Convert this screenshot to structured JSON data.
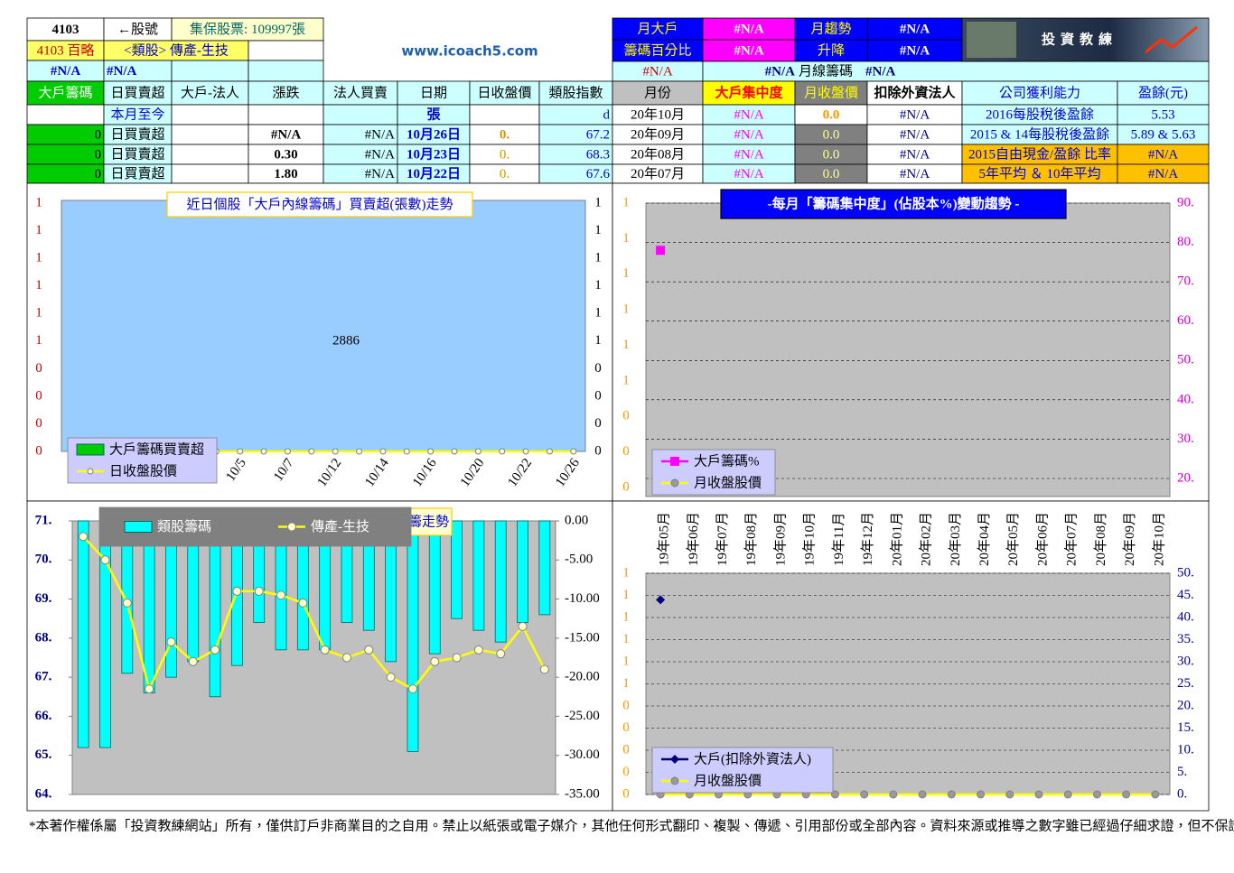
{
  "header": {
    "stock_code": "4103",
    "code_label": "←股號",
    "shares": "集保股票: 109997張",
    "stock_name": "4103 百略",
    "sector": "<類股> 傳產-生技",
    "na_1": "#N/A",
    "na_2": "#N/A",
    "site": "www.icoach5.com",
    "big_holder_label_1": "月大戶",
    "big_holder_label_2": "籌碼百分比",
    "big_holder_value_1": "#N/A",
    "big_holder_value_2": "#N/A",
    "big_holder_value_3": "#N/A",
    "trend_label_1": "月趨勢",
    "trend_label_2": "升降",
    "trend_value_1": "#N/A",
    "trend_value_2": "#N/A",
    "monthly_line": [
      "#N/A",
      "月線籌碼",
      "#N/A"
    ],
    "logo": "投資教練"
  },
  "table": {
    "rows": [
      [
        "大戶籌碼",
        "日買賣超",
        "大戶-法人",
        "漲跌",
        "法人買賣",
        "日期",
        "日收盤價",
        "類股指數",
        "月份",
        "大戶集中度",
        "月收盤價",
        "扣除外資法人",
        "公司獲利能力",
        "盈餘(元)"
      ],
      [
        null,
        "本月至今",
        null,
        null,
        null,
        "張",
        null,
        "d",
        "20年10月",
        "#N/A",
        "0.0",
        "#N/A",
        "2016每股稅後盈餘",
        "5.53"
      ],
      [
        "0",
        "日買賣超",
        null,
        "#N/A",
        "#N/A",
        "10月26日",
        "0.",
        "67.2",
        "20年09月",
        "#N/A",
        "0.0",
        "#N/A",
        "2015 & 14每股稅後盈餘",
        "5.89 & 5.63"
      ],
      [
        "0",
        "日買賣超",
        null,
        "0.30",
        "#N/A",
        "10月23日",
        "0.",
        "68.3",
        "20年08月",
        "#N/A",
        "0.0",
        "#N/A",
        "2015自由現金/盈餘 比率",
        "#N/A"
      ],
      [
        "0",
        "日買賣超",
        null,
        "1.80",
        "#N/A",
        "10月22日",
        "0.",
        "67.6",
        "20年07月",
        "#N/A",
        "0.0",
        "#N/A",
        "5年平均 ＆ 10年平均",
        "#N/A"
      ]
    ]
  },
  "chart_data": [
    {
      "type": "bar",
      "title": "近日個股「大戶內線籌碼」買賣超(張數)走勢",
      "annotation": "2886",
      "categories": [
        null,
        null,
        null,
        null,
        null,
        null,
        null,
        "10/5",
        null,
        "10/7",
        null,
        "10/12",
        null,
        "10/14",
        null,
        "10/16",
        null,
        "10/20",
        null,
        "10/22",
        null,
        "10/26"
      ],
      "left_axis_labels": [
        "1",
        "1",
        "1",
        "1",
        "1",
        "1",
        "0",
        "0",
        "0",
        "0"
      ],
      "right_axis_labels": [
        "1",
        "1",
        "1",
        "1",
        "1",
        "1",
        "0",
        "0",
        "0",
        "0"
      ],
      "series": [
        {
          "name": "大戶籌碼買賣超",
          "color": "#00cc00"
        },
        {
          "name": "日收盤股價",
          "color": "#ffff00",
          "values": [
            0,
            0,
            0,
            0,
            0,
            0,
            0,
            0,
            0,
            0,
            0,
            0,
            0,
            0,
            0,
            0,
            0,
            0,
            0,
            0,
            0,
            0
          ]
        }
      ]
    },
    {
      "type": "line",
      "title": "-每月「籌碼集中度」(佔股本%)變動趨勢 -",
      "left_axis_labels": [
        "1",
        "1",
        "1",
        "1",
        "1",
        "1",
        "0",
        "0",
        "0"
      ],
      "y2lim": [
        20,
        90
      ],
      "y2ticks": [
        {
          "value": 90,
          "label": "90."
        },
        {
          "value": 80,
          "label": "80."
        },
        {
          "value": 70,
          "label": "70."
        },
        {
          "value": 60,
          "label": "60."
        },
        {
          "value": 50,
          "label": "50."
        },
        {
          "value": 40,
          "label": "40."
        },
        {
          "value": 30,
          "label": "30."
        },
        {
          "value": 20,
          "label": "20."
        }
      ],
      "grid": true,
      "series": [
        {
          "name": "大戶籌碼%",
          "color": "#ff00ff",
          "axis": "y2",
          "values": [
            78
          ]
        },
        {
          "name": "月收盤股價",
          "color": "#ffff00"
        }
      ]
    },
    {
      "type": "bar",
      "title": "籌走勢",
      "ylim": [
        64,
        71
      ],
      "yticks": [
        {
          "value": 71,
          "label": "71."
        },
        {
          "value": 70,
          "label": "70."
        },
        {
          "value": 69,
          "label": "69."
        },
        {
          "value": 68,
          "label": "68."
        },
        {
          "value": 67,
          "label": "67."
        },
        {
          "value": 66,
          "label": "66."
        },
        {
          "value": 65,
          "label": "65."
        },
        {
          "value": 64,
          "label": "64."
        }
      ],
      "y2lim": [
        -35,
        0
      ],
      "y2ticks": [
        {
          "value": 0,
          "label": "0.00"
        },
        {
          "value": -5,
          "label": "-5.00"
        },
        {
          "value": -10,
          "label": "-10.00"
        },
        {
          "value": -15,
          "label": "-15.00"
        },
        {
          "value": -20,
          "label": "-20.00"
        },
        {
          "value": -25,
          "label": "-25.00"
        },
        {
          "value": -30,
          "label": "-30.00"
        },
        {
          "value": -35,
          "label": "-35.00"
        }
      ],
      "series": [
        {
          "name": "類股籌碼",
          "color": "#00ffff",
          "axis": "y2",
          "values": [
            -29,
            -29,
            -19.5,
            -22,
            -20,
            -18,
            -22.5,
            -18.5,
            -13,
            -16.5,
            -16.5,
            -16.5,
            -13,
            -14,
            -18,
            -29.5,
            -17,
            -12.5,
            -14,
            -15.5,
            -13,
            -12
          ]
        },
        {
          "name": "傳產-生技",
          "color": "#ffff00",
          "values": [
            70.6,
            70.0,
            68.9,
            66.7,
            67.9,
            67.4,
            67.7,
            69.2,
            69.2,
            69.1,
            68.9,
            67.7,
            67.5,
            67.7,
            67.0,
            66.7,
            67.4,
            67.5,
            67.7,
            67.6,
            68.3,
            67.2
          ]
        }
      ]
    },
    {
      "type": "line",
      "categories": [
        "19年05月",
        "19年06月",
        "19年07月",
        "19年08月",
        "19年09月",
        "19年10月",
        "19年11月",
        "19年12月",
        "20年01月",
        "20年02月",
        "20年03月",
        "20年04月",
        "20年05月",
        "20年06月",
        "20年07月",
        "20年08月",
        "20年09月",
        "20年10月"
      ],
      "left_axis_labels": [
        "1",
        "1",
        "1",
        "1",
        "1",
        "1",
        "0",
        "0",
        "0",
        "0",
        "0"
      ],
      "y2lim": [
        0,
        50
      ],
      "y2ticks": [
        {
          "value": 50,
          "label": "50."
        },
        {
          "value": 45,
          "label": "45."
        },
        {
          "value": 40,
          "label": "40."
        },
        {
          "value": 35,
          "label": "35."
        },
        {
          "value": 30,
          "label": "30."
        },
        {
          "value": 25,
          "label": "25."
        },
        {
          "value": 20,
          "label": "20."
        },
        {
          "value": 15,
          "label": "15."
        },
        {
          "value": 10,
          "label": "10."
        },
        {
          "value": 5,
          "label": "5."
        },
        {
          "value": 0,
          "label": "0."
        }
      ],
      "grid": true,
      "series": [
        {
          "name": "大戶(扣除外資法人)",
          "color": "#000080",
          "axis": "y2",
          "values": [
            44,
            null,
            null,
            null,
            null,
            null,
            null,
            null,
            null,
            null,
            null,
            null,
            null,
            null,
            null,
            null,
            null,
            null
          ]
        },
        {
          "name": "月收盤股價",
          "color": "#ffff00",
          "values": [
            0,
            0,
            0,
            0,
            0,
            0,
            0,
            0,
            0,
            0,
            0,
            0,
            0,
            0,
            0,
            0,
            0,
            0
          ]
        }
      ]
    }
  ],
  "footer": "*本著作權係屬「投資教練網站」所有，僅供訂戶非商業目的之自用。禁止以紙張或電子媒介，其他任何形式翻印、複製、傳遞、引用部份或全部內容。資料來源或推導之數字雖已經過仔細求證，但不保證毫無錯誤。"
}
